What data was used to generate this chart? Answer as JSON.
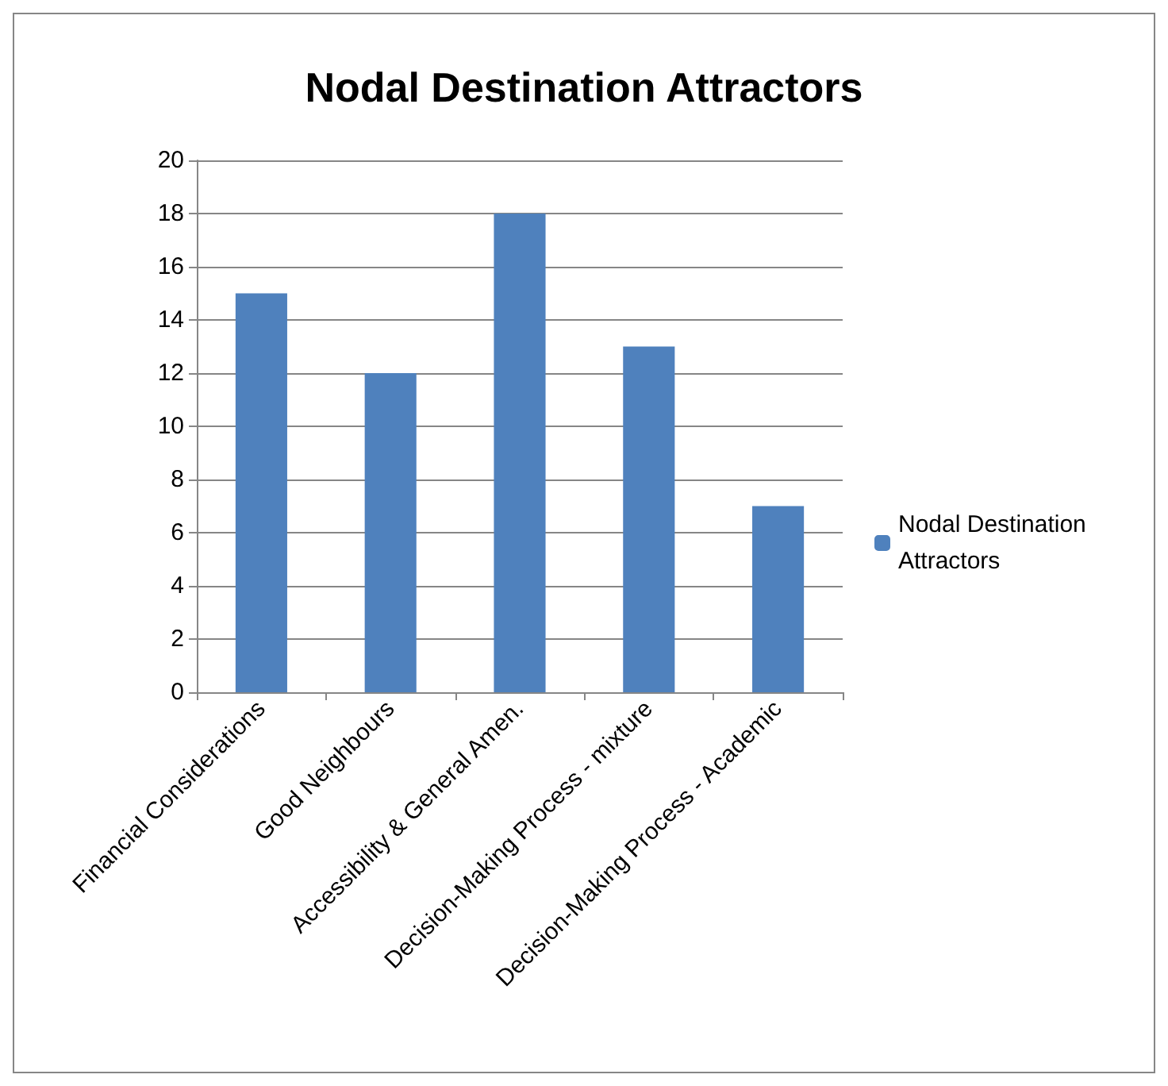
{
  "chart_data": {
    "type": "bar",
    "title": "Nodal Destination Attractors",
    "categories": [
      "Financial Considerations",
      "Good Neighbours",
      "Accessibility & General Amen.",
      "Decision-Making Process - mixture",
      "Decision-Making Process - Academic"
    ],
    "series": [
      {
        "name": "Nodal Destination Attractors",
        "color": "#4f81bd",
        "values": [
          15,
          12,
          18,
          13,
          7
        ]
      }
    ],
    "ylim": [
      0,
      20
    ],
    "yticks": [
      0,
      2,
      4,
      6,
      8,
      10,
      12,
      14,
      16,
      18,
      20
    ],
    "grid": "y",
    "legend": "right"
  }
}
